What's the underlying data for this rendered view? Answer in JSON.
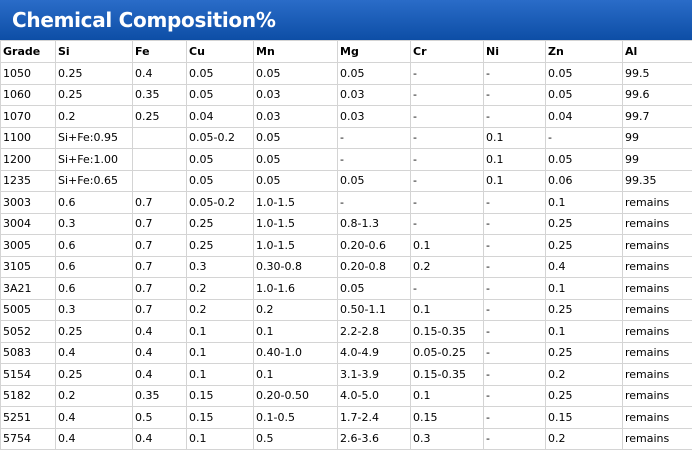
{
  "header": {
    "title": "Chemical Composition%"
  },
  "table": {
    "columns": [
      "Grade",
      "Si",
      "Fe",
      "Cu",
      "Mn",
      "Mg",
      "Cr",
      "Ni",
      "Zn",
      "Al"
    ],
    "rows": [
      [
        "1050",
        "0.25",
        "0.4",
        "0.05",
        "0.05",
        "0.05",
        "-",
        "-",
        "0.05",
        "99.5"
      ],
      [
        "1060",
        "0.25",
        "0.35",
        "0.05",
        "0.03",
        "0.03",
        "-",
        "-",
        "0.05",
        "99.6"
      ],
      [
        "1070",
        "0.2",
        "0.25",
        "0.04",
        "0.03",
        "0.03",
        "-",
        "-",
        "0.04",
        "99.7"
      ],
      [
        "1100",
        "Si+Fe:0.95",
        null,
        "0.05-0.2",
        "0.05",
        "-",
        "-",
        "0.1",
        "-",
        "99"
      ],
      [
        "1200",
        "Si+Fe:1.00",
        null,
        "0.05",
        "0.05",
        "-",
        "-",
        "0.1",
        "0.05",
        "99"
      ],
      [
        "1235",
        "Si+Fe:0.65",
        null,
        "0.05",
        "0.05",
        "0.05",
        "-",
        "0.1",
        "0.06",
        "99.35"
      ],
      [
        "3003",
        "0.6",
        "0.7",
        "0.05-0.2",
        "1.0-1.5",
        "-",
        "-",
        "-",
        "0.1",
        "remains"
      ],
      [
        "3004",
        "0.3",
        "0.7",
        "0.25",
        "1.0-1.5",
        "0.8-1.3",
        "-",
        "-",
        "0.25",
        "remains"
      ],
      [
        "3005",
        "0.6",
        "0.7",
        "0.25",
        "1.0-1.5",
        "0.20-0.6",
        "0.1",
        "-",
        "0.25",
        "remains"
      ],
      [
        "3105",
        "0.6",
        "0.7",
        "0.3",
        "0.30-0.8",
        "0.20-0.8",
        "0.2",
        "-",
        "0.4",
        "remains"
      ],
      [
        "3A21",
        "0.6",
        "0.7",
        "0.2",
        "1.0-1.6",
        "0.05",
        "-",
        "-",
        "0.1",
        "remains"
      ],
      [
        "5005",
        "0.3",
        "0.7",
        "0.2",
        "0.2",
        "0.50-1.1",
        "0.1",
        "-",
        "0.25",
        "remains"
      ],
      [
        "5052",
        "0.25",
        "0.4",
        "0.1",
        "0.1",
        "2.2-2.8",
        "0.15-0.35",
        "-",
        "0.1",
        "remains"
      ],
      [
        "5083",
        "0.4",
        "0.4",
        "0.1",
        "0.40-1.0",
        "4.0-4.9",
        "0.05-0.25",
        "-",
        "0.25",
        "remains"
      ],
      [
        "5154",
        "0.25",
        "0.4",
        "0.1",
        "0.1",
        "3.1-3.9",
        "0.15-0.35",
        "-",
        "0.2",
        "remains"
      ],
      [
        "5182",
        "0.2",
        "0.35",
        "0.15",
        "0.20-0.50",
        "4.0-5.0",
        "0.1",
        "-",
        "0.25",
        "remains"
      ],
      [
        "5251",
        "0.4",
        "0.5",
        "0.15",
        "0.1-0.5",
        "1.7-2.4",
        "0.15",
        "-",
        "0.15",
        "remains"
      ],
      [
        "5754",
        "0.4",
        "0.4",
        "0.1",
        "0.5",
        "2.6-3.6",
        "0.3",
        "-",
        "0.2",
        "remains"
      ]
    ]
  }
}
